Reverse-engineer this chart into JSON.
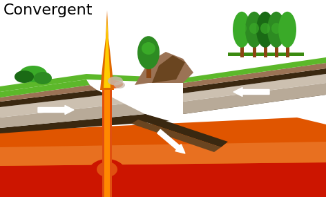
{
  "title": "Convergent",
  "title_fontsize": 16,
  "bg_color": "#ffffff",
  "colors": {
    "grass_green": "#5cb82a",
    "grass_dark": "#3a8a10",
    "soil_brown": "#9b7355",
    "soil_mid": "#b8945f",
    "rock_gray": "#b8aa98",
    "rock_light": "#ccc0b0",
    "rock_dark": "#8a7060",
    "dark_layer": "#3a2810",
    "mantle_orange": "#e05500",
    "mantle_light": "#e87020",
    "mantle_dark": "#c04000",
    "lava_red": "#cc1500",
    "lava_orange": "#e05010",
    "lava_bright": "#ff8800",
    "flame_orange": "#e06800",
    "flame_yellow": "#ffcc00",
    "subduct_brown": "#6a4520",
    "subduct_dark": "#2a1808",
    "tree_trunk": "#8B4513",
    "tree_green1": "#2d8b22",
    "tree_green2": "#3aaa28",
    "tree_green3": "#1a6a15",
    "smoke_gray": "#c8b8a8"
  }
}
